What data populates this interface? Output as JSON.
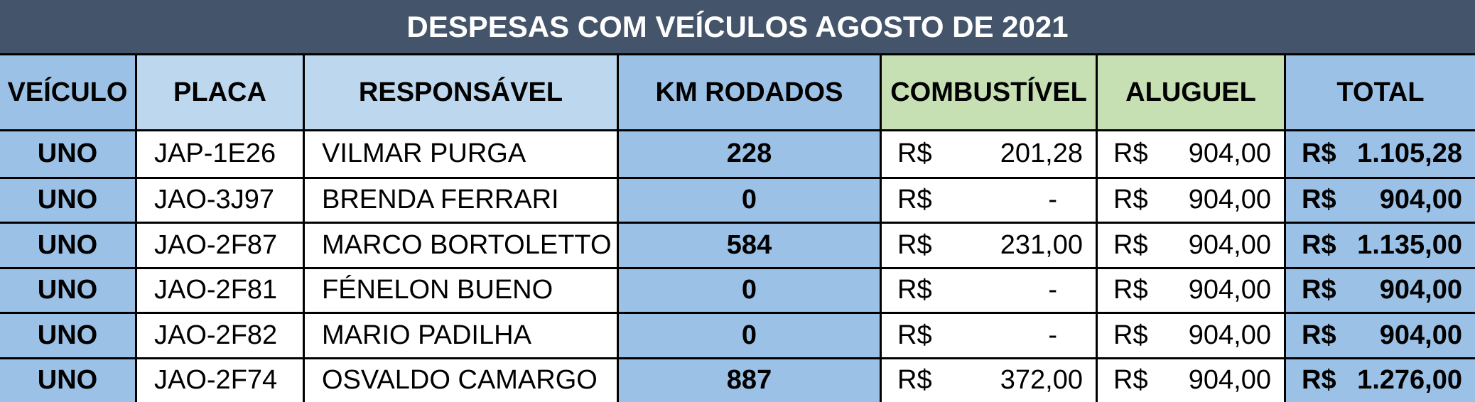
{
  "title": "DESPESAS COM VEÍCULOS AGOSTO DE 2021",
  "table": {
    "headers": [
      "VEÍCULO",
      "PLACA",
      "RESPONSÁVEL",
      "KM RODADOS",
      "COMBUSTÍVEL",
      "ALUGUEL",
      "TOTAL"
    ],
    "rows": [
      [
        "UNO",
        "JAP-1E26",
        "VILMAR PURGA",
        "228",
        [
          "R$",
          "201,28"
        ],
        [
          "R$",
          "904,00"
        ],
        [
          "R$",
          "1.105,28"
        ]
      ],
      [
        "UNO",
        "JAO-3J97",
        "BRENDA FERRARI",
        "0",
        [
          "R$",
          "-"
        ],
        [
          "R$",
          "904,00"
        ],
        [
          "R$",
          "904,00"
        ]
      ],
      [
        "UNO",
        "JAO-2F87",
        "MARCO BORTOLETTO",
        "584",
        [
          "R$",
          "231,00"
        ],
        [
          "R$",
          "904,00"
        ],
        [
          "R$",
          "1.135,00"
        ]
      ],
      [
        "UNO",
        "JAO-2F81",
        "FÉNELON BUENO",
        "0",
        [
          "R$",
          "-"
        ],
        [
          "R$",
          "904,00"
        ],
        [
          "R$",
          "904,00"
        ]
      ],
      [
        "UNO",
        "JAO-2F82",
        "MARIO PADILHA",
        "0",
        [
          "R$",
          "-"
        ],
        [
          "R$",
          "904,00"
        ],
        [
          "R$",
          "904,00"
        ]
      ],
      [
        "UNO",
        "JAO-2F74",
        "OSVALDO CAMARGO",
        "887",
        [
          "R$",
          "372,00"
        ],
        [
          "R$",
          "904,00"
        ],
        [
          "R$",
          "1.276,00"
        ]
      ]
    ]
  }
}
